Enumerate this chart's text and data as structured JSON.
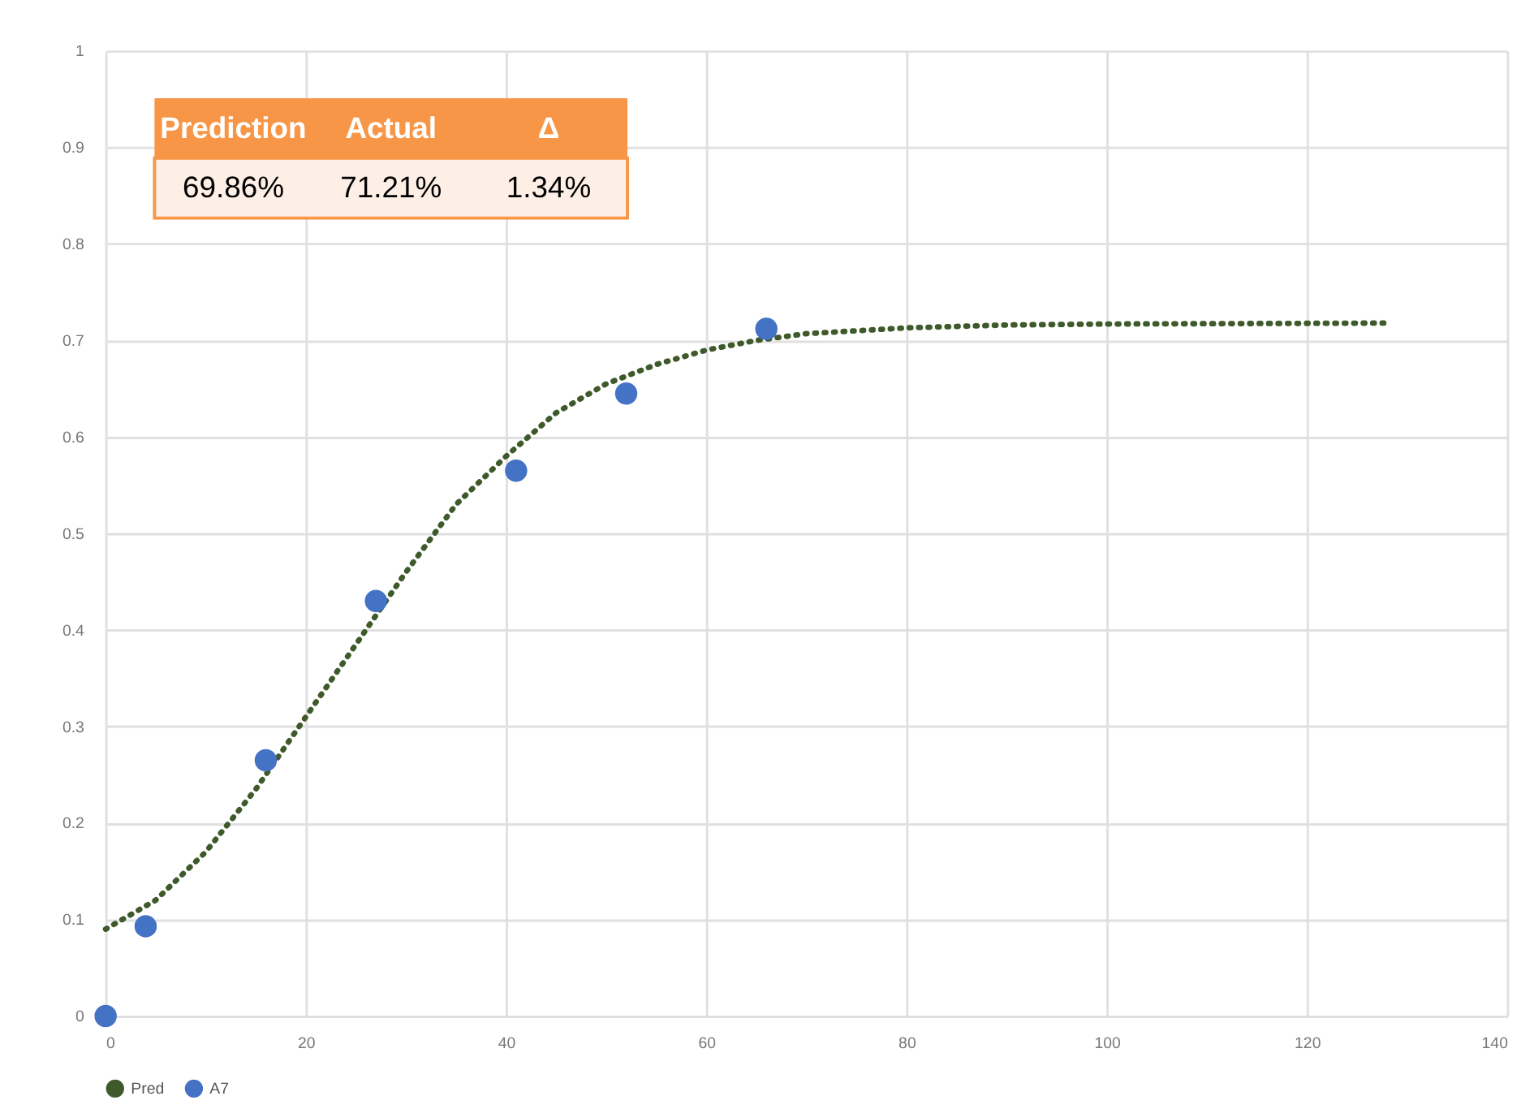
{
  "chart_data": {
    "type": "scatter",
    "xlim": [
      0,
      140
    ],
    "xticks": [
      0,
      20,
      40,
      60,
      80,
      100,
      120,
      140
    ],
    "ylim": [
      0,
      1
    ],
    "yticks": [
      0,
      0.1,
      0.2,
      0.3,
      0.4,
      0.5,
      0.6,
      0.7,
      0.8,
      0.9,
      1
    ],
    "grid": true,
    "legend": "bottom",
    "series": [
      {
        "name": "Pred",
        "type": "line",
        "line_style": "dotted",
        "color": "#3f5a2a",
        "x": [
          0,
          5,
          10,
          15,
          20,
          25,
          30,
          35,
          40,
          45,
          50,
          55,
          60,
          65,
          70,
          80,
          90,
          100,
          128
        ],
        "values": [
          0.09,
          0.12,
          0.17,
          0.235,
          0.31,
          0.385,
          0.46,
          0.53,
          0.58,
          0.625,
          0.655,
          0.675,
          0.69,
          0.7,
          0.707,
          0.713,
          0.716,
          0.717,
          0.718
        ]
      },
      {
        "name": "A7",
        "marker": "circle",
        "color": "#4472c4",
        "x": [
          0,
          4,
          16,
          27,
          41,
          52,
          66
        ],
        "values": [
          0,
          0.093,
          0.265,
          0.43,
          0.565,
          0.645,
          0.712
        ]
      }
    ],
    "annotations": [
      "Prediction",
      "Actual",
      "Δ",
      "69.86%",
      "71.21%",
      "1.34%"
    ]
  }
}
